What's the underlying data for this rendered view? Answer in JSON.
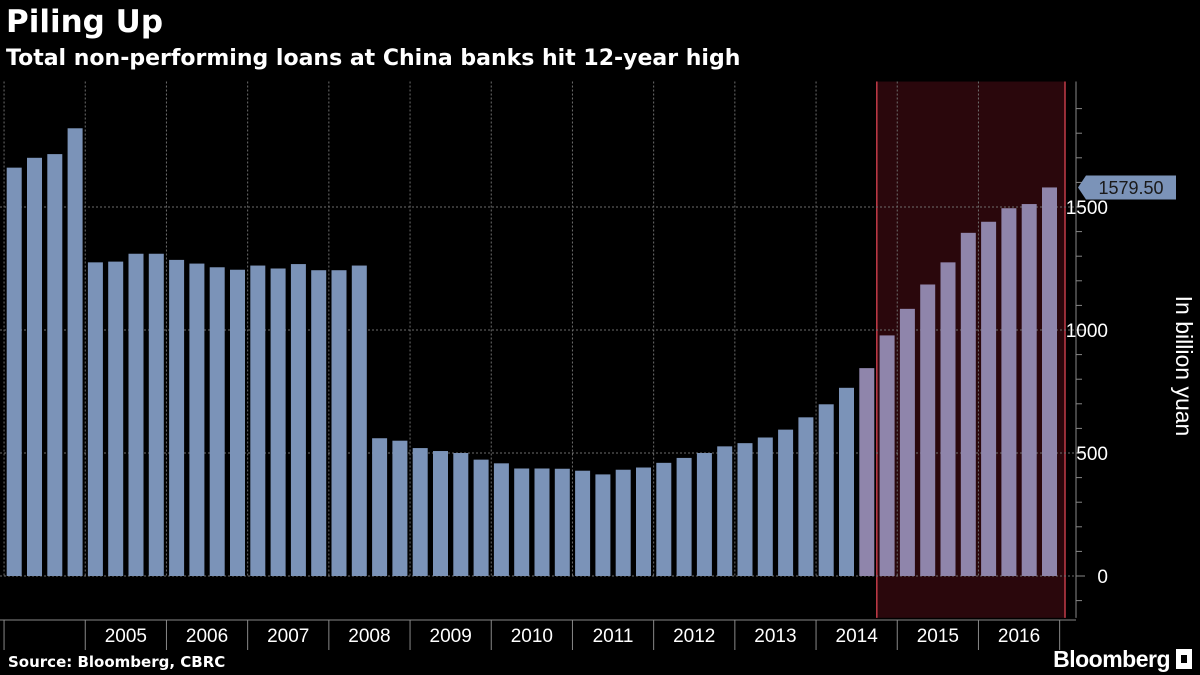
{
  "header": {
    "title": "Piling Up",
    "subtitle": "Total non-performing loans at China banks hit 12-year high"
  },
  "footer": {
    "source": "Source: Bloomberg, CBRC",
    "brand": "Bloomberg"
  },
  "colors": {
    "background": "#000000",
    "bar": "#7b93b8",
    "bar_highlight": "#8f85ab",
    "highlight_fill": "#2a070c",
    "highlight_border": "#c23b48",
    "callout_bg": "#7b93b8"
  },
  "chart_data": {
    "type": "bar",
    "x_start": "2004-Q1",
    "frequency": "quarterly",
    "values": [
      1660,
      1700,
      1715,
      1820,
      1275,
      1278,
      1310,
      1310,
      1285,
      1270,
      1255,
      1245,
      1262,
      1250,
      1268,
      1243,
      1243,
      1262,
      560,
      550,
      520,
      508,
      500,
      473,
      458,
      437,
      437,
      436,
      428,
      413,
      432,
      441,
      460,
      480,
      500,
      527,
      540,
      563,
      595,
      645,
      698,
      765,
      845,
      978,
      1086,
      1185,
      1275,
      1395,
      1440,
      1495,
      1512,
      1579.5
    ],
    "x_tick_labels": [
      "2005",
      "2006",
      "2007",
      "2008",
      "2009",
      "2010",
      "2011",
      "2012",
      "2013",
      "2014",
      "2015",
      "2016"
    ],
    "y_ticks": [
      0,
      500,
      1000,
      1500
    ],
    "ylim": [
      -170,
      2010
    ],
    "ylabel": "In billion yuan",
    "highlight_start_index": 42,
    "callout": {
      "index": 51,
      "label": "1579.50"
    },
    "grid": true
  }
}
